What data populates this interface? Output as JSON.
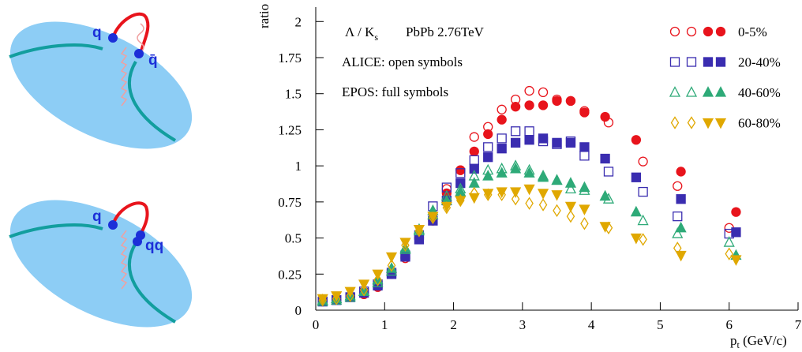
{
  "diagrams": [
    {
      "labels": [
        "q",
        "q̄"
      ]
    },
    {
      "labels": [
        "q",
        "qq"
      ]
    }
  ],
  "chart_data": {
    "type": "scatter",
    "ylabel": "ratio",
    "xlabel": {
      "main": "p",
      "sub": "t",
      "rest": " (GeV/c)"
    },
    "annotations": {
      "ratio_main": "Λ / K",
      "ratio_sub": "s",
      "system": "PbPb 2.76TeV",
      "alice": "ALICE: open symbols",
      "epos": "EPOS: full symbols"
    },
    "xlim": [
      0,
      7
    ],
    "xticks": [
      0,
      1,
      2,
      3,
      4,
      5,
      6,
      7
    ],
    "ylim": [
      0,
      2.1
    ],
    "yticks": [
      0,
      0.25,
      0.5,
      0.75,
      1,
      1.25,
      1.5,
      1.75,
      2
    ],
    "series": [
      {
        "name": "0-5%",
        "color": "#e8141c",
        "open_marker": "circle",
        "full_marker": "circle",
        "alice": {
          "x": [
            0.1,
            0.3,
            0.5,
            0.7,
            0.9,
            1.1,
            1.3,
            1.5,
            1.7,
            1.9,
            2.1,
            2.3,
            2.5,
            2.7,
            2.9,
            3.1,
            3.3,
            3.5,
            3.7,
            3.9,
            4.25,
            4.75,
            5.25,
            6.0
          ],
          "values": [
            0.06,
            0.07,
            0.09,
            0.12,
            0.17,
            0.25,
            0.36,
            0.5,
            0.64,
            0.84,
            0.97,
            1.2,
            1.27,
            1.39,
            1.46,
            1.52,
            1.51,
            1.46,
            1.45,
            1.38,
            1.3,
            1.03,
            0.86,
            0.57
          ]
        },
        "epos": {
          "x": [
            0.1,
            0.3,
            0.5,
            0.7,
            0.9,
            1.1,
            1.3,
            1.5,
            1.7,
            1.9,
            2.1,
            2.3,
            2.5,
            2.7,
            2.9,
            3.1,
            3.3,
            3.5,
            3.7,
            3.9,
            4.2,
            4.65,
            5.3,
            6.1
          ],
          "values": [
            0.06,
            0.07,
            0.09,
            0.11,
            0.16,
            0.25,
            0.37,
            0.5,
            0.62,
            0.81,
            0.97,
            1.1,
            1.22,
            1.32,
            1.41,
            1.42,
            1.42,
            1.45,
            1.45,
            1.37,
            1.34,
            1.18,
            0.96,
            0.68
          ]
        }
      },
      {
        "name": "20-40%",
        "color": "#3a2db0",
        "open_marker": "square",
        "full_marker": "square",
        "alice": {
          "x": [
            0.1,
            0.3,
            0.5,
            0.7,
            0.9,
            1.1,
            1.3,
            1.5,
            1.7,
            1.9,
            2.1,
            2.3,
            2.5,
            2.7,
            2.9,
            3.1,
            3.3,
            3.5,
            3.7,
            3.9,
            4.25,
            4.75,
            5.25,
            6.0
          ],
          "values": [
            0.06,
            0.07,
            0.09,
            0.13,
            0.18,
            0.26,
            0.38,
            0.52,
            0.72,
            0.85,
            0.95,
            1.04,
            1.13,
            1.19,
            1.24,
            1.24,
            1.17,
            1.15,
            1.17,
            1.07,
            0.96,
            0.82,
            0.65,
            0.53
          ]
        },
        "epos": {
          "x": [
            0.1,
            0.3,
            0.5,
            0.7,
            0.9,
            1.1,
            1.3,
            1.5,
            1.7,
            1.9,
            2.1,
            2.3,
            2.5,
            2.7,
            2.9,
            3.1,
            3.3,
            3.5,
            3.7,
            3.9,
            4.2,
            4.65,
            5.3,
            6.1
          ],
          "values": [
            0.06,
            0.07,
            0.09,
            0.12,
            0.17,
            0.25,
            0.37,
            0.49,
            0.62,
            0.76,
            0.88,
            0.98,
            1.06,
            1.12,
            1.16,
            1.18,
            1.19,
            1.16,
            1.16,
            1.13,
            1.05,
            0.92,
            0.77,
            0.54
          ]
        }
      },
      {
        "name": "40-60%",
        "color": "#2eaa78",
        "open_marker": "triangle-up",
        "full_marker": "triangle-up",
        "alice": {
          "x": [
            0.1,
            0.3,
            0.5,
            0.7,
            0.9,
            1.1,
            1.3,
            1.5,
            1.7,
            1.9,
            2.1,
            2.3,
            2.5,
            2.7,
            2.9,
            3.1,
            3.3,
            3.5,
            3.7,
            3.9,
            4.25,
            4.75,
            5.25,
            6.0
          ],
          "values": [
            0.06,
            0.07,
            0.09,
            0.13,
            0.19,
            0.27,
            0.42,
            0.55,
            0.66,
            0.79,
            0.84,
            0.93,
            0.97,
            0.98,
            1.0,
            0.97,
            0.93,
            0.9,
            0.84,
            0.83,
            0.77,
            0.62,
            0.53,
            0.47
          ]
        },
        "epos": {
          "x": [
            0.1,
            0.3,
            0.5,
            0.7,
            0.9,
            1.1,
            1.3,
            1.5,
            1.7,
            1.9,
            2.1,
            2.3,
            2.5,
            2.7,
            2.9,
            3.1,
            3.3,
            3.5,
            3.7,
            3.9,
            4.2,
            4.65,
            5.3,
            6.1
          ],
          "values": [
            0.07,
            0.08,
            0.1,
            0.13,
            0.21,
            0.29,
            0.43,
            0.56,
            0.69,
            0.76,
            0.82,
            0.88,
            0.93,
            0.95,
            0.98,
            0.95,
            0.92,
            0.9,
            0.88,
            0.85,
            0.79,
            0.68,
            0.57,
            0.38
          ]
        }
      },
      {
        "name": "60-80%",
        "color": "#e0a800",
        "open_marker": "diamond",
        "full_marker": "triangle-down",
        "alice": {
          "x": [
            0.1,
            0.3,
            0.5,
            0.7,
            0.9,
            1.1,
            1.3,
            1.5,
            1.7,
            1.9,
            2.1,
            2.3,
            2.5,
            2.7,
            2.9,
            3.1,
            3.3,
            3.5,
            3.7,
            3.9,
            4.25,
            4.75,
            5.25,
            6.0
          ],
          "values": [
            0.07,
            0.08,
            0.1,
            0.14,
            0.21,
            0.31,
            0.45,
            0.55,
            0.64,
            0.71,
            0.76,
            0.81,
            0.8,
            0.8,
            0.77,
            0.74,
            0.73,
            0.69,
            0.65,
            0.6,
            0.57,
            0.49,
            0.43,
            0.39
          ]
        },
        "epos": {
          "x": [
            0.1,
            0.3,
            0.5,
            0.7,
            0.9,
            1.1,
            1.3,
            1.5,
            1.7,
            1.9,
            2.1,
            2.3,
            2.5,
            2.7,
            2.9,
            3.1,
            3.3,
            3.5,
            3.7,
            3.9,
            4.2,
            4.65,
            5.3,
            6.1
          ],
          "values": [
            0.08,
            0.1,
            0.13,
            0.18,
            0.25,
            0.37,
            0.47,
            0.56,
            0.65,
            0.72,
            0.76,
            0.78,
            0.81,
            0.82,
            0.82,
            0.84,
            0.81,
            0.8,
            0.72,
            0.7,
            0.58,
            0.5,
            0.38,
            0.35
          ]
        }
      }
    ]
  }
}
